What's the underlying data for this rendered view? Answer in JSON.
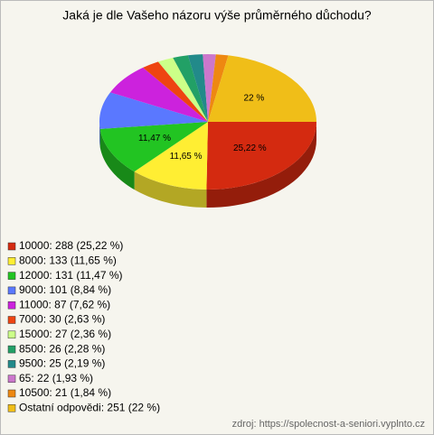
{
  "chart_data": {
    "type": "pie3d",
    "title": "Jaká je dle Vašeho názoru výše průměrného důchodu?",
    "categories": [
      "10000: 288 (25,22 %)",
      "8000: 133 (11,65 %)",
      "12000: 131 (11,47 %)",
      "9000: 101 (8,84 %)",
      "11000: 87 (7,62 %)",
      "7000: 30 (2,63 %)",
      "15000: 27 (2,36 %)",
      "8500: 26 (2,28 %)",
      "9500: 25 (2,19 %)",
      "65: 22 (1,93 %)",
      "10500: 21 (1,84 %)",
      "Ostatní odpovědi: 251 (22 %)"
    ],
    "values": [
      25.22,
      11.65,
      11.47,
      8.84,
      7.62,
      2.63,
      2.36,
      2.28,
      2.19,
      1.93,
      1.84,
      22
    ],
    "value_labels": [
      "25,22 %",
      "11,65 %",
      "11,47 %",
      null,
      null,
      null,
      null,
      null,
      null,
      null,
      null,
      "22 %"
    ],
    "colors": [
      "#d42a10",
      "#ffee33",
      "#22c422",
      "#5a78ff",
      "#cc22dd",
      "#ee4411",
      "#ccff88",
      "#22a066",
      "#228a8a",
      "#cc77cc",
      "#ee8811",
      "#f0be18"
    ],
    "source": "zdroj: https://spolecnost-a-seniori.vyplnto.cz"
  }
}
